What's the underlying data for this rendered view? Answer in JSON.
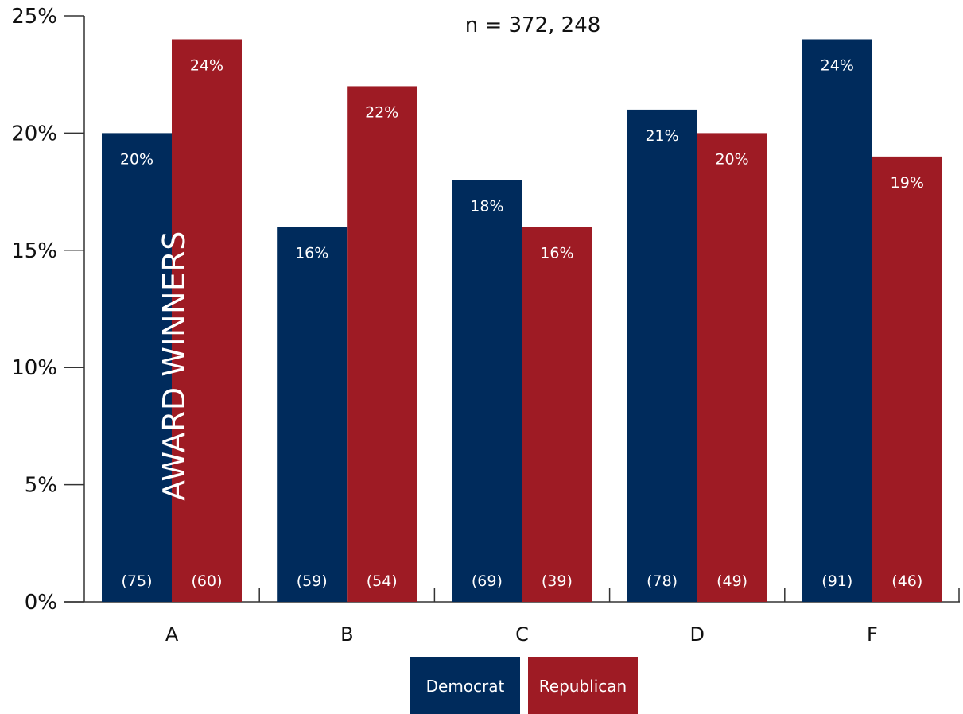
{
  "chart_data": {
    "type": "bar",
    "subtitle": "n = 372, 248",
    "side_title": "AWARD WINNERS",
    "categories": [
      "A",
      "B",
      "C",
      "D",
      "F"
    ],
    "y_ticks": [
      "0%",
      "5%",
      "10%",
      "15%",
      "20%",
      "25%"
    ],
    "ylim": [
      0,
      25
    ],
    "series": [
      {
        "name": "Democrat",
        "color": "#002b5c",
        "values": [
          20,
          16,
          18,
          21,
          24
        ],
        "value_labels": [
          "20%",
          "16%",
          "18%",
          "21%",
          "24%"
        ],
        "counts": [
          "(75)",
          "(59)",
          "(69)",
          "(78)",
          "(91)"
        ]
      },
      {
        "name": "Republican",
        "color": "#9e1b24",
        "values": [
          24,
          22,
          16,
          20,
          19
        ],
        "value_labels": [
          "24%",
          "22%",
          "16%",
          "20%",
          "19%"
        ],
        "counts": [
          "(60)",
          "(54)",
          "(39)",
          "(49)",
          "(46)"
        ]
      }
    ],
    "legend": [
      "Democrat",
      "Republican"
    ],
    "legend_position": "bottom-center",
    "grid": false
  }
}
